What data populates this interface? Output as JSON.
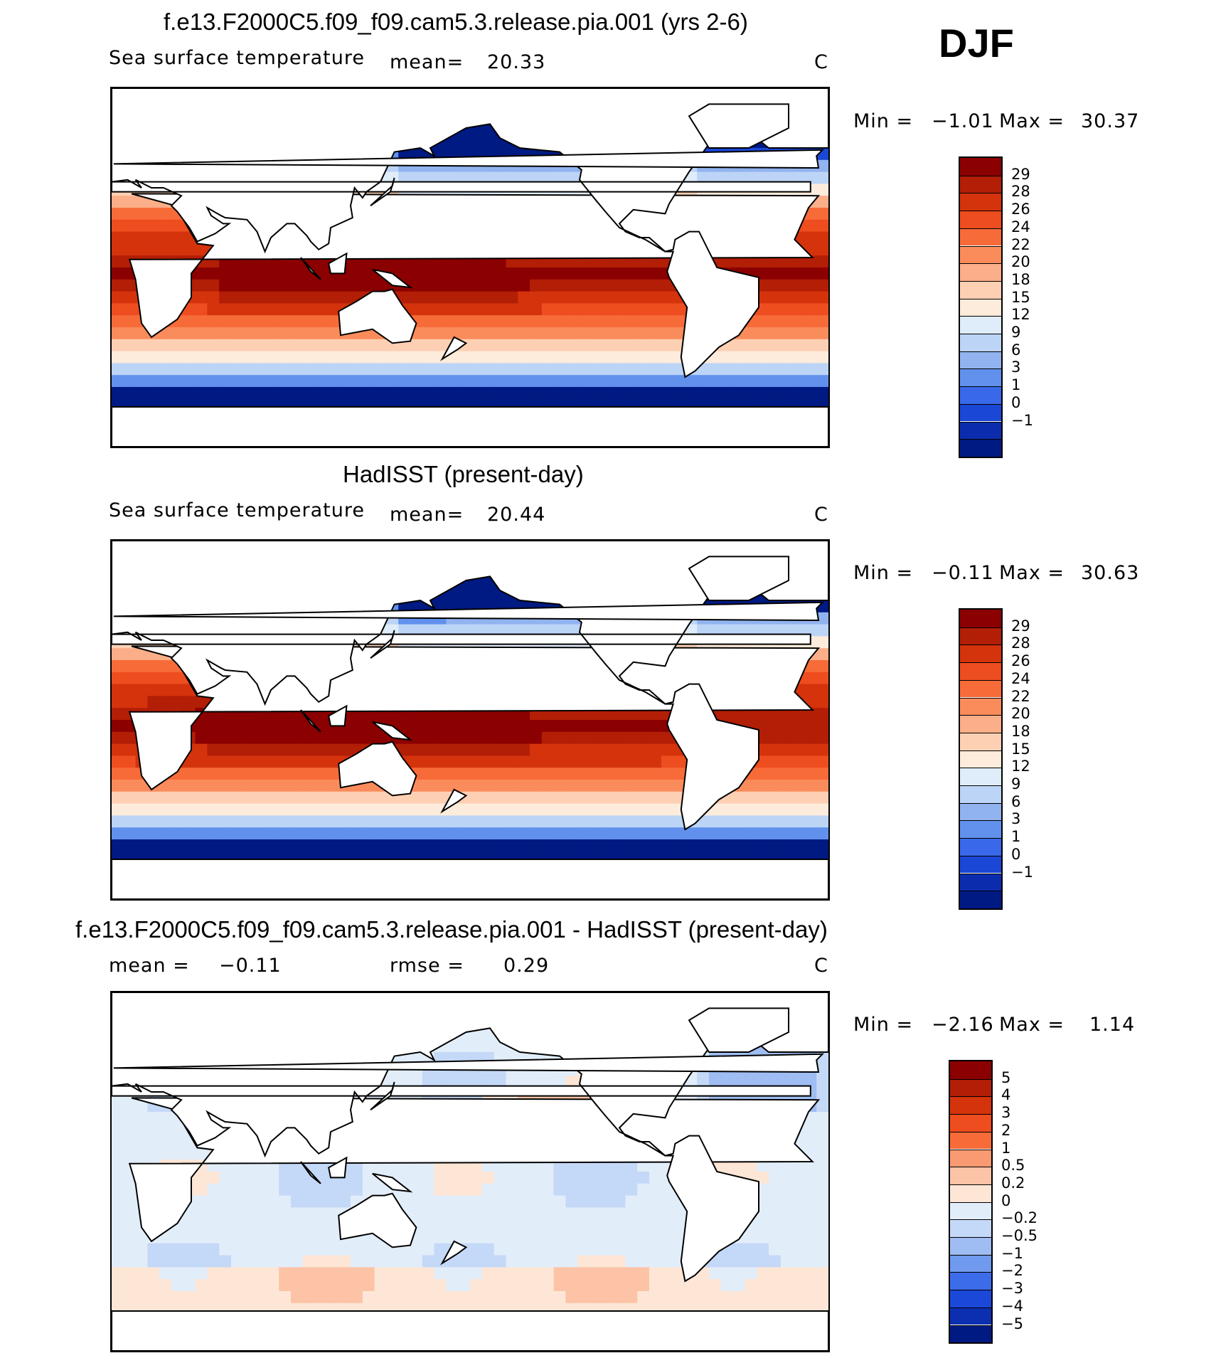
{
  "season": "DJF",
  "panels": [
    {
      "title": "f.e13.F2000C5.f09_f09.cam5.3.release.pia.001 (yrs 2-6)",
      "variable": "Sea surface temperature",
      "mean_label": "mean=",
      "mean_value": "20.33",
      "units": "C",
      "minmax": {
        "min_label": "Min =",
        "min_value": "−1.01",
        "max_label": "Max =",
        "max_value": "30.37"
      }
    },
    {
      "title": "HadISST (present-day)",
      "variable": "Sea surface temperature",
      "mean_label": "mean=",
      "mean_value": "20.44",
      "units": "C",
      "minmax": {
        "min_label": "Min =",
        "min_value": "−0.11",
        "max_label": "Max =",
        "max_value": "30.63"
      }
    },
    {
      "title": "f.e13.F2000C5.f09_f09.cam5.3.release.pia.001 - HadISST (present-day)",
      "mean_label": "mean =",
      "mean_value": "−0.11",
      "rmse_label": "rmse =",
      "rmse_value": "0.29",
      "units": "C",
      "minmax": {
        "min_label": "Min =",
        "min_value": "−2.16",
        "max_label": "Max =",
        "max_value": "1.14"
      }
    }
  ],
  "chart_data": [
    {
      "type": "heatmap",
      "title": "f.e13.F2000C5.f09_f09.cam5.3.release.pia.001 (yrs 2-6)",
      "subtitle": "Sea surface temperature",
      "units": "C",
      "mean": 20.33,
      "min": -1.01,
      "max": 30.37,
      "colorbar_levels": [
        "29",
        "28",
        "26",
        "24",
        "22",
        "20",
        "18",
        "15",
        "12",
        "9",
        "6",
        "3",
        "1",
        "0",
        "−1"
      ],
      "colors": [
        "#8b0000",
        "#b21e06",
        "#d4330c",
        "#ee4d1f",
        "#f76b39",
        "#fa8c5c",
        "#fcae88",
        "#fdd0b4",
        "#fdebdb",
        "#dfecf9",
        "#bcd4f6",
        "#91b4f0",
        "#6191ec",
        "#3969ea",
        "#1a47d6",
        "#0b2dad",
        "#001a83"
      ],
      "region": "global sea surface"
    },
    {
      "type": "heatmap",
      "title": "HadISST (present-day)",
      "subtitle": "Sea surface temperature",
      "units": "C",
      "mean": 20.44,
      "min": -0.11,
      "max": 30.63,
      "colorbar_levels": [
        "29",
        "28",
        "26",
        "24",
        "22",
        "20",
        "18",
        "15",
        "12",
        "9",
        "6",
        "3",
        "1",
        "0",
        "−1"
      ],
      "colors": [
        "#8b0000",
        "#b21e06",
        "#d4330c",
        "#ee4d1f",
        "#f76b39",
        "#fa8c5c",
        "#fcae88",
        "#fdd0b4",
        "#fdebdb",
        "#dfecf9",
        "#bcd4f6",
        "#91b4f0",
        "#6191ec",
        "#3969ea",
        "#1a47d6",
        "#0b2dad",
        "#001a83"
      ],
      "region": "global sea surface"
    },
    {
      "type": "heatmap",
      "title": "f.e13.F2000C5.f09_f09.cam5.3.release.pia.001 - HadISST (present-day)",
      "units": "C",
      "mean": -0.11,
      "rmse": 0.29,
      "min": -2.16,
      "max": 1.14,
      "colorbar_levels": [
        "5",
        "4",
        "3",
        "2",
        "1",
        "0.5",
        "0.2",
        "0",
        "−0.2",
        "−0.5",
        "−1",
        "−2",
        "−3",
        "−4",
        "−5"
      ],
      "colors": [
        "#8b0000",
        "#b21e06",
        "#d4330c",
        "#ee4d1f",
        "#f76b39",
        "#fa9a72",
        "#fcc3a6",
        "#fde6d6",
        "#e2edfa",
        "#c4d8f7",
        "#9fbdf2",
        "#6f9aed",
        "#3d6ceb",
        "#1b48d8",
        "#0c2eb0",
        "#001a83"
      ],
      "region": "global sea surface"
    }
  ]
}
